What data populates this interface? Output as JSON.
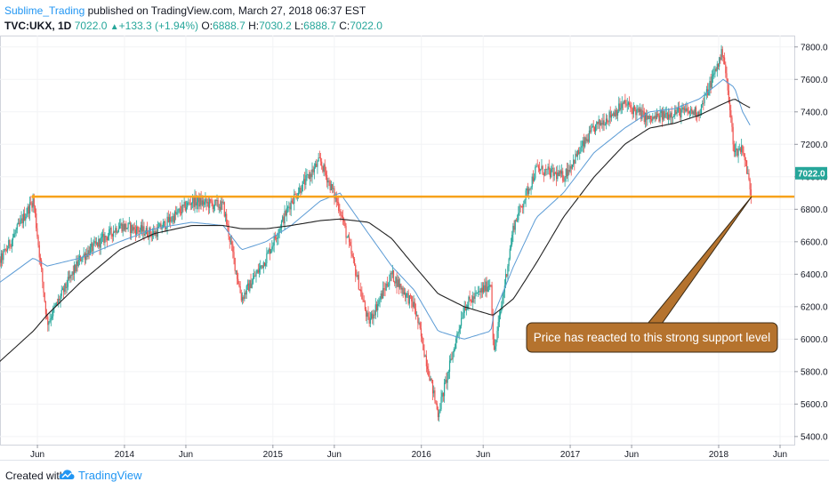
{
  "header": {
    "author": "Sublime_Trading",
    "published_text": " published on TradingView.com, March 27, 2018 06:37 EST",
    "symbol": "TVC:UKX, 1D",
    "last": "7022.0",
    "change": "+133.3 (+1.94%)",
    "open_label": "O:",
    "open": "6888.7",
    "high_label": "H:",
    "high": "7030.2",
    "low_label": "L:",
    "low": "6888.7",
    "close_label": "C:",
    "close": "7022.0"
  },
  "footer": {
    "created_with": "Created with",
    "brand": "TradingView"
  },
  "colors": {
    "up_candle": "#26a69a",
    "down_candle": "#ef5350",
    "ma_fast": "#5b9bd5",
    "ma_slow": "#222222",
    "support_line": "#f7a21b",
    "annotation_fill": "#b5732e",
    "price_label_bg": "#26a69a"
  },
  "chart_data": {
    "type": "line",
    "title": "TVC:UKX, 1D",
    "xlabel": "",
    "ylabel": "",
    "ylim": [
      5350,
      7870
    ],
    "x_ticks": [
      {
        "label": "Jun",
        "date": "2013-06-01"
      },
      {
        "label": "2014",
        "date": "2014-01-01"
      },
      {
        "label": "Jun",
        "date": "2014-06-01"
      },
      {
        "label": "2015",
        "date": "2015-01-01"
      },
      {
        "label": "Jun",
        "date": "2015-06-01"
      },
      {
        "label": "2016",
        "date": "2016-01-01"
      },
      {
        "label": "Jun",
        "date": "2016-06-01"
      },
      {
        "label": "2017",
        "date": "2017-01-01"
      },
      {
        "label": "Jun",
        "date": "2017-06-01"
      },
      {
        "label": "2018",
        "date": "2018-01-01"
      },
      {
        "label": "Jun",
        "date": "2018-06-01"
      }
    ],
    "y_ticks": [
      "5400.0",
      "5600.0",
      "5800.0",
      "6000.0",
      "6200.0",
      "6400.0",
      "6600.0",
      "6800.0",
      "7000.0",
      "7200.0",
      "7400.0",
      "7600.0",
      "7800.0"
    ],
    "x": [
      "2013-02-01",
      "2013-05-22",
      "2013-06-25",
      "2013-09-15",
      "2013-12-20",
      "2014-03-15",
      "2014-06-15",
      "2014-09-01",
      "2014-10-16",
      "2014-12-15",
      "2015-02-15",
      "2015-04-27",
      "2015-06-15",
      "2015-08-24",
      "2015-10-20",
      "2015-12-15",
      "2016-02-11",
      "2016-04-15",
      "2016-06-20",
      "2016-06-27",
      "2016-08-15",
      "2016-10-10",
      "2016-12-15",
      "2017-03-01",
      "2017-05-15",
      "2017-07-15",
      "2017-09-15",
      "2017-11-15",
      "2018-01-12",
      "2018-02-09",
      "2018-03-01",
      "2018-03-23"
    ],
    "series": [
      {
        "name": "",
        "role": "price",
        "values": [
          6350,
          6860,
          6100,
          6500,
          6700,
          6650,
          6850,
          6820,
          6250,
          6500,
          6850,
          7100,
          6800,
          6100,
          6400,
          6200,
          5540,
          6200,
          6350,
          5900,
          6700,
          7050,
          7000,
          7300,
          7450,
          7350,
          7400,
          7400,
          7780,
          7150,
          7180,
          6880
        ]
      },
      {
        "name": "",
        "role": "ma_fast",
        "values": [
          6300,
          6500,
          6450,
          6500,
          6600,
          6680,
          6720,
          6700,
          6550,
          6600,
          6700,
          6850,
          6900,
          6650,
          6450,
          6300,
          6050,
          6000,
          6050,
          6150,
          6450,
          6750,
          6900,
          7150,
          7300,
          7400,
          7420,
          7480,
          7600,
          7550,
          7400,
          7300
        ]
      },
      {
        "name": "",
        "role": "ma_slow",
        "values": [
          5800,
          6050,
          6150,
          6350,
          6550,
          6650,
          6700,
          6700,
          6680,
          6680,
          6700,
          6730,
          6740,
          6720,
          6620,
          6450,
          6280,
          6200,
          6150,
          6150,
          6250,
          6470,
          6750,
          7000,
          7200,
          7300,
          7330,
          7380,
          7450,
          7480,
          7450,
          7420
        ]
      }
    ],
    "support_level": 6878,
    "annotation": "Price has reacted to this strong support level",
    "last_price_label": "7022.0",
    "grid": true,
    "legend": "none"
  }
}
